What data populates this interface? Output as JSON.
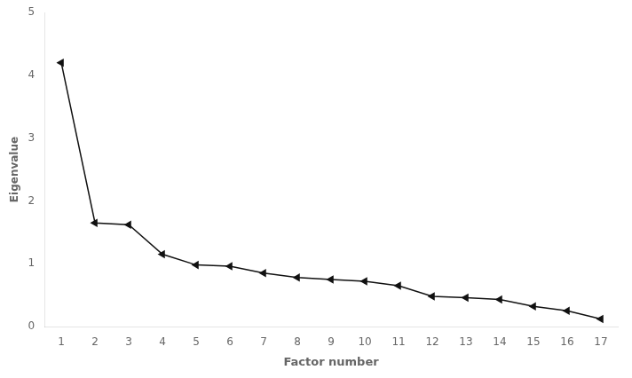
{
  "chart_data": {
    "type": "line",
    "x": [
      1,
      2,
      3,
      4,
      5,
      6,
      7,
      8,
      9,
      10,
      11,
      12,
      13,
      14,
      15,
      16,
      17
    ],
    "values": [
      4.2,
      1.65,
      1.62,
      1.15,
      0.98,
      0.96,
      0.85,
      0.78,
      0.75,
      0.72,
      0.65,
      0.48,
      0.46,
      0.43,
      0.32,
      0.25,
      0.12
    ],
    "x_label": "Factor number",
    "y_label": "Eigenvalue",
    "xlim": [
      0.5,
      17.5
    ],
    "ylim": [
      0,
      5
    ],
    "xticks": [
      1,
      2,
      3,
      4,
      5,
      6,
      7,
      8,
      9,
      10,
      11,
      12,
      13,
      14,
      15,
      16,
      17
    ],
    "yticks": [
      0,
      1,
      2,
      3,
      4,
      5
    ],
    "color": "#111111",
    "marker": "triangle-left",
    "grid": false
  }
}
